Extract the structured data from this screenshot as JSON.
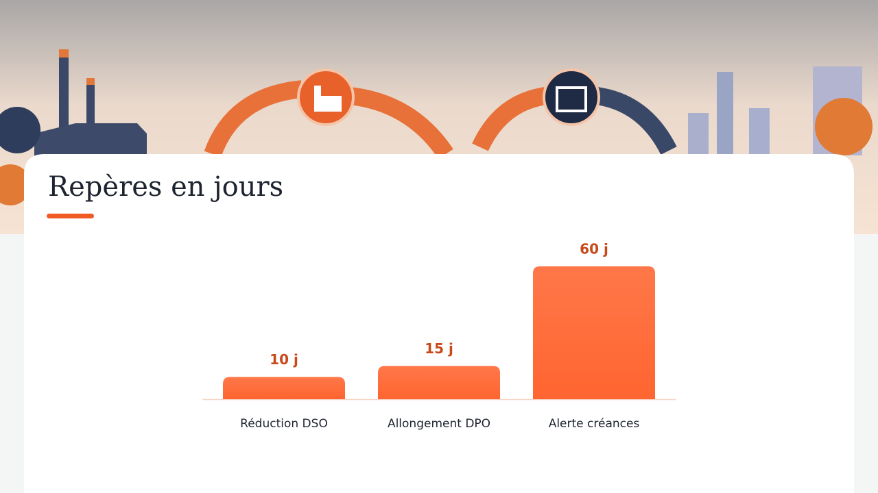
{
  "chart_data": {
    "type": "bar",
    "title": "Repères en jours",
    "categories": [
      "Réduction DSO",
      "Allongement DPO",
      "Alerte créances"
    ],
    "values": [
      10,
      15,
      60
    ],
    "value_labels": [
      "10 j",
      "15 j",
      "60 j"
    ],
    "color": "#ff6530"
  }
}
